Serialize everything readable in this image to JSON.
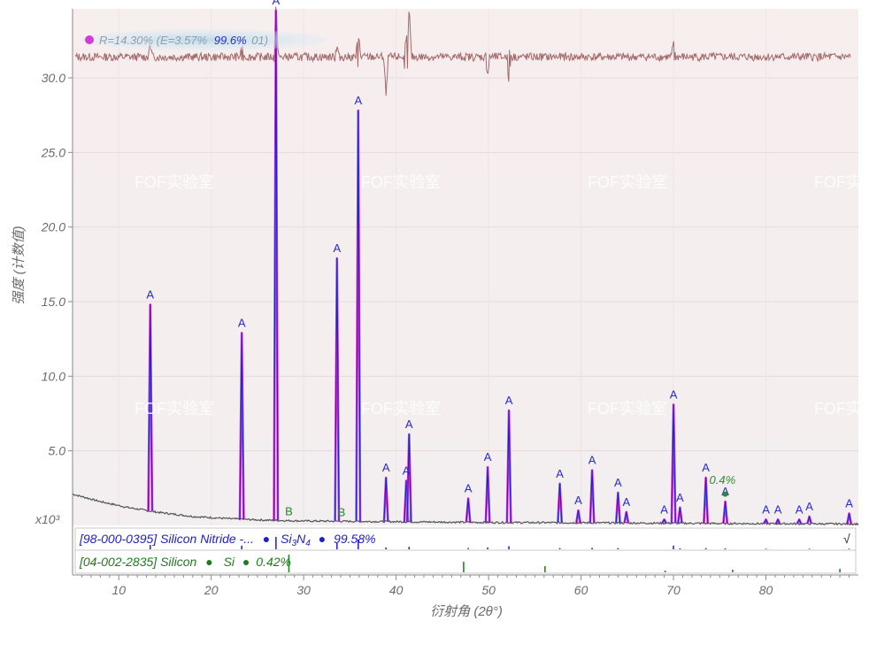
{
  "chart_data": {
    "type": "line",
    "ylabel": "强度 (计数值)",
    "xlabel": "衍射角 (2θ°)",
    "y_multiplier_label": "x10³",
    "xlim": [
      5,
      90
    ],
    "ylim": [
      0,
      35
    ],
    "x_ticks": [
      10,
      20,
      30,
      40,
      50,
      60,
      70,
      80
    ],
    "x_tick_labels": [
      "10",
      "20",
      "30",
      "40",
      "50",
      "60",
      "70",
      "80"
    ],
    "y_ticks": [
      5,
      10,
      15,
      20,
      25,
      30
    ],
    "y_tick_labels": [
      "5.0",
      "10.0",
      "15.0",
      "20.0",
      "25.0",
      "30.0"
    ],
    "fit_summary": {
      "prefix": "R=14.30% (E=3.57%",
      "highlight": "99.6%",
      "suffix": "01)"
    },
    "peaks_A": [
      {
        "x": 13.4,
        "y": 14.8
      },
      {
        "x": 23.3,
        "y": 12.9
      },
      {
        "x": 27.0,
        "y": 34.5
      },
      {
        "x": 33.6,
        "y": 17.9
      },
      {
        "x": 35.9,
        "y": 27.8
      },
      {
        "x": 38.9,
        "y": 3.2
      },
      {
        "x": 41.1,
        "y": 3.0
      },
      {
        "x": 41.4,
        "y": 6.1
      },
      {
        "x": 47.8,
        "y": 1.8
      },
      {
        "x": 49.9,
        "y": 3.9
      },
      {
        "x": 52.2,
        "y": 7.7
      },
      {
        "x": 57.7,
        "y": 2.8
      },
      {
        "x": 59.7,
        "y": 1.0
      },
      {
        "x": 61.2,
        "y": 3.7
      },
      {
        "x": 64.0,
        "y": 2.2
      },
      {
        "x": 64.9,
        "y": 0.9
      },
      {
        "x": 69.0,
        "y": 0.4
      },
      {
        "x": 70.0,
        "y": 8.1
      },
      {
        "x": 70.7,
        "y": 1.2
      },
      {
        "x": 73.5,
        "y": 3.2
      },
      {
        "x": 75.6,
        "y": 1.6
      },
      {
        "x": 80.0,
        "y": 0.4
      },
      {
        "x": 81.3,
        "y": 0.4
      },
      {
        "x": 83.6,
        "y": 0.4
      },
      {
        "x": 84.7,
        "y": 0.6
      },
      {
        "x": 89.0,
        "y": 0.8
      }
    ],
    "peak_label_A": "A",
    "peaks_B": [
      {
        "x": 28.4,
        "y": 0.3
      },
      {
        "x": 34.1,
        "y": 0.3
      }
    ],
    "peak_label_B": "B",
    "si_extra_label": {
      "x": 75.6,
      "text": "0.4%"
    },
    "background": [
      {
        "x": 5,
        "y": 2.1
      },
      {
        "x": 8,
        "y": 1.6
      },
      {
        "x": 11,
        "y": 1.2
      },
      {
        "x": 14,
        "y": 0.9
      },
      {
        "x": 18,
        "y": 0.6
      },
      {
        "x": 22,
        "y": 0.45
      },
      {
        "x": 26,
        "y": 0.35
      },
      {
        "x": 30,
        "y": 0.3
      },
      {
        "x": 40,
        "y": 0.25
      },
      {
        "x": 50,
        "y": 0.2
      },
      {
        "x": 60,
        "y": 0.18
      },
      {
        "x": 70,
        "y": 0.15
      },
      {
        "x": 80,
        "y": 0.12
      },
      {
        "x": 90,
        "y": 0.1
      }
    ],
    "difference_curve_level": 31.4,
    "reference_phases": [
      {
        "card": "[98-000-0395] Silicon Nitride -...",
        "formula_prefix": "Si",
        "formula_sub1": "3",
        "formula_mid": "N",
        "formula_sub2": "4",
        "percent": "99.58%",
        "check": "√",
        "color": "#2a2ad0",
        "sticks": [
          {
            "x": 13.4,
            "h": 0.35
          },
          {
            "x": 23.3,
            "h": 0.3
          },
          {
            "x": 27.0,
            "h": 1.0
          },
          {
            "x": 33.6,
            "h": 0.5
          },
          {
            "x": 35.9,
            "h": 0.8
          },
          {
            "x": 38.9,
            "h": 0.15
          },
          {
            "x": 41.4,
            "h": 0.2
          },
          {
            "x": 47.8,
            "h": 0.1
          },
          {
            "x": 49.9,
            "h": 0.15
          },
          {
            "x": 52.2,
            "h": 0.25
          },
          {
            "x": 57.7,
            "h": 0.1
          },
          {
            "x": 61.2,
            "h": 0.12
          },
          {
            "x": 64.0,
            "h": 0.1
          },
          {
            "x": 70.0,
            "h": 0.3
          },
          {
            "x": 70.7,
            "h": 0.08
          },
          {
            "x": 73.5,
            "h": 0.1
          },
          {
            "x": 75.6,
            "h": 0.08
          },
          {
            "x": 80.0,
            "h": 0.05
          },
          {
            "x": 84.7,
            "h": 0.05
          },
          {
            "x": 89.0,
            "h": 0.06
          }
        ]
      },
      {
        "card": "[04-002-2835] Silicon",
        "formula_prefix": "Si",
        "percent": "0.42%",
        "color": "#1f8a1f",
        "sticks": [
          {
            "x": 28.4,
            "h": 1.0
          },
          {
            "x": 47.3,
            "h": 0.6
          },
          {
            "x": 56.1,
            "h": 0.35
          },
          {
            "x": 69.1,
            "h": 0.1
          },
          {
            "x": 76.4,
            "h": 0.15
          },
          {
            "x": 88.0,
            "h": 0.2
          }
        ]
      }
    ],
    "watermark_text": "FOF实验室",
    "colors": {
      "observed": "#d23bd6",
      "calculated": "#2222c8",
      "difference": "#a46a6a",
      "background": "#555555"
    }
  }
}
